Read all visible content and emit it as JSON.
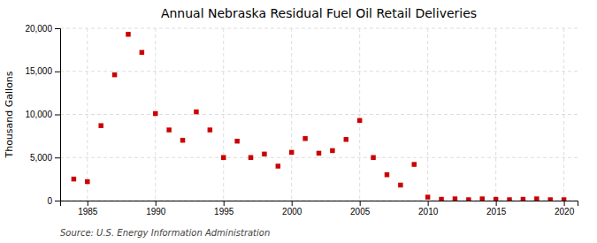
{
  "chart_data": {
    "type": "scatter",
    "title": "Annual Nebraska Residual Fuel Oil Retail Deliveries",
    "ylabel": "Thousand Gallons",
    "annotations": [
      "Source: U.S. Energy Information Administration"
    ],
    "x": [
      1984,
      1985,
      1986,
      1987,
      1988,
      1989,
      1990,
      1991,
      1992,
      1993,
      1994,
      1995,
      1996,
      1997,
      1998,
      1999,
      2000,
      2001,
      2002,
      2003,
      2004,
      2005,
      2006,
      2007,
      2008,
      2009,
      2010,
      2011,
      2012,
      2013,
      2014,
      2015,
      2016,
      2017,
      2018,
      2019,
      2020
    ],
    "values": [
      2500,
      2200,
      8700,
      14600,
      19300,
      17200,
      10100,
      8200,
      7000,
      10300,
      8200,
      5000,
      6900,
      5000,
      5400,
      4000,
      5600,
      7200,
      5500,
      5800,
      7100,
      9300,
      5000,
      3000,
      1800,
      4200,
      400,
      150,
      200,
      100,
      200,
      150,
      100,
      150,
      200,
      100,
      100
    ],
    "color": "#cc0000",
    "marker": "square",
    "xlim": [
      1983,
      2021
    ],
    "ylim": [
      0,
      20000
    ],
    "xticks": [
      1985,
      1990,
      1995,
      2000,
      2005,
      2010,
      2015,
      2020
    ],
    "yticks": [
      0,
      {
        "value": 5000,
        "label": "5,000"
      },
      {
        "value": 10000,
        "label": "10,000"
      },
      {
        "value": 15000,
        "label": "15,000"
      },
      {
        "value": 20000,
        "label": "20,000"
      }
    ],
    "grid": true
  }
}
